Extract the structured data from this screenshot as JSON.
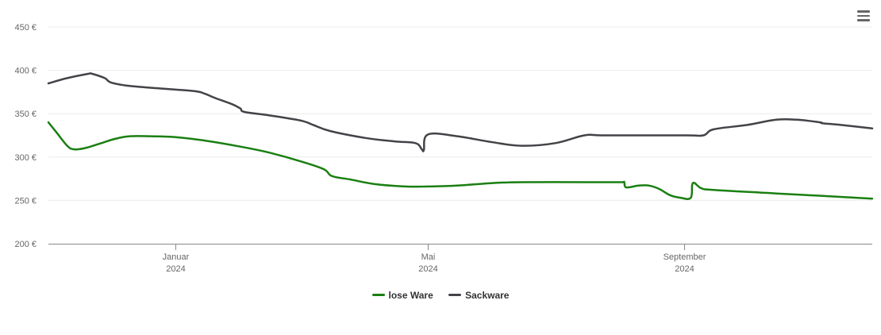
{
  "colors": {
    "lose_ware": "#1a7f12",
    "sackware": "#434348"
  },
  "menu": {
    "icon": "hamburger-menu-icon"
  },
  "chart_data": {
    "type": "line",
    "y_unit": "€",
    "ylim": [
      200,
      450
    ],
    "y_ticks": [
      {
        "value": 200,
        "label": "200 €"
      },
      {
        "value": 250,
        "label": "250 €"
      },
      {
        "value": 300,
        "label": "300 €"
      },
      {
        "value": 350,
        "label": "350 €"
      },
      {
        "value": 400,
        "label": "400 €"
      },
      {
        "value": 450,
        "label": "450 €"
      }
    ],
    "xlim": [
      "2023-11-01",
      "2024-11-30"
    ],
    "x_ticks": [
      {
        "date": "2024-01-01",
        "month": "Januar",
        "year": "2024"
      },
      {
        "date": "2024-05-01",
        "month": "Mai",
        "year": "2024"
      },
      {
        "date": "2024-09-01",
        "month": "September",
        "year": "2024"
      }
    ],
    "grid": true,
    "legend_position": "bottom-center",
    "series": [
      {
        "name": "lose Ware",
        "color": "#1a7f12",
        "points": [
          [
            "2023-11-01",
            340
          ],
          [
            "2023-11-05",
            328
          ],
          [
            "2023-11-10",
            313
          ],
          [
            "2023-11-13",
            309
          ],
          [
            "2023-11-18",
            310
          ],
          [
            "2023-11-25",
            315
          ],
          [
            "2023-12-03",
            321
          ],
          [
            "2023-12-10",
            324
          ],
          [
            "2023-12-20",
            324
          ],
          [
            "2024-01-01",
            323
          ],
          [
            "2024-01-15",
            319
          ],
          [
            "2024-02-01",
            312
          ],
          [
            "2024-02-15",
            305
          ],
          [
            "2024-03-01",
            295
          ],
          [
            "2024-03-12",
            286
          ],
          [
            "2024-03-16",
            278
          ],
          [
            "2024-03-25",
            274
          ],
          [
            "2024-04-05",
            269
          ],
          [
            "2024-04-20",
            266
          ],
          [
            "2024-05-01",
            266
          ],
          [
            "2024-05-15",
            267
          ],
          [
            "2024-06-01",
            270
          ],
          [
            "2024-06-15",
            271
          ],
          [
            "2024-07-15",
            271
          ],
          [
            "2024-08-01",
            271
          ],
          [
            "2024-08-03",
            271
          ],
          [
            "2024-08-04",
            265
          ],
          [
            "2024-08-10",
            267
          ],
          [
            "2024-08-15",
            267
          ],
          [
            "2024-08-20",
            263
          ],
          [
            "2024-08-25",
            256
          ],
          [
            "2024-08-30",
            253
          ],
          [
            "2024-09-04",
            253
          ],
          [
            "2024-09-05",
            270
          ],
          [
            "2024-09-09",
            264
          ],
          [
            "2024-09-15",
            262
          ],
          [
            "2024-10-15",
            258
          ],
          [
            "2024-11-30",
            252
          ]
        ]
      },
      {
        "name": "Sackware",
        "color": "#434348",
        "points": [
          [
            "2023-11-01",
            385
          ],
          [
            "2023-11-10",
            391
          ],
          [
            "2023-11-20",
            396
          ],
          [
            "2023-11-22",
            396
          ],
          [
            "2023-11-28",
            391
          ],
          [
            "2023-12-01",
            386
          ],
          [
            "2023-12-10",
            382
          ],
          [
            "2023-12-25",
            379
          ],
          [
            "2024-01-10",
            376
          ],
          [
            "2024-01-15",
            373
          ],
          [
            "2024-01-20",
            368
          ],
          [
            "2024-01-28",
            361
          ],
          [
            "2024-02-01",
            356
          ],
          [
            "2024-02-03",
            352
          ],
          [
            "2024-02-15",
            348
          ],
          [
            "2024-03-01",
            342
          ],
          [
            "2024-03-07",
            337
          ],
          [
            "2024-03-15",
            330
          ],
          [
            "2024-04-01",
            322
          ],
          [
            "2024-04-15",
            318
          ],
          [
            "2024-04-25",
            316
          ],
          [
            "2024-04-28",
            309
          ],
          [
            "2024-04-29",
            308
          ],
          [
            "2024-05-01",
            326
          ],
          [
            "2024-05-15",
            324
          ],
          [
            "2024-06-01",
            317
          ],
          [
            "2024-06-15",
            313
          ],
          [
            "2024-07-01",
            316
          ],
          [
            "2024-07-15",
            325
          ],
          [
            "2024-07-25",
            325
          ],
          [
            "2024-09-01",
            325
          ],
          [
            "2024-09-10",
            325
          ],
          [
            "2024-09-15",
            332
          ],
          [
            "2024-10-01",
            337
          ],
          [
            "2024-10-15",
            343
          ],
          [
            "2024-10-25",
            343
          ],
          [
            "2024-11-05",
            340
          ],
          [
            "2024-11-06",
            339
          ],
          [
            "2024-11-15",
            337
          ],
          [
            "2024-11-30",
            333
          ]
        ]
      }
    ]
  }
}
